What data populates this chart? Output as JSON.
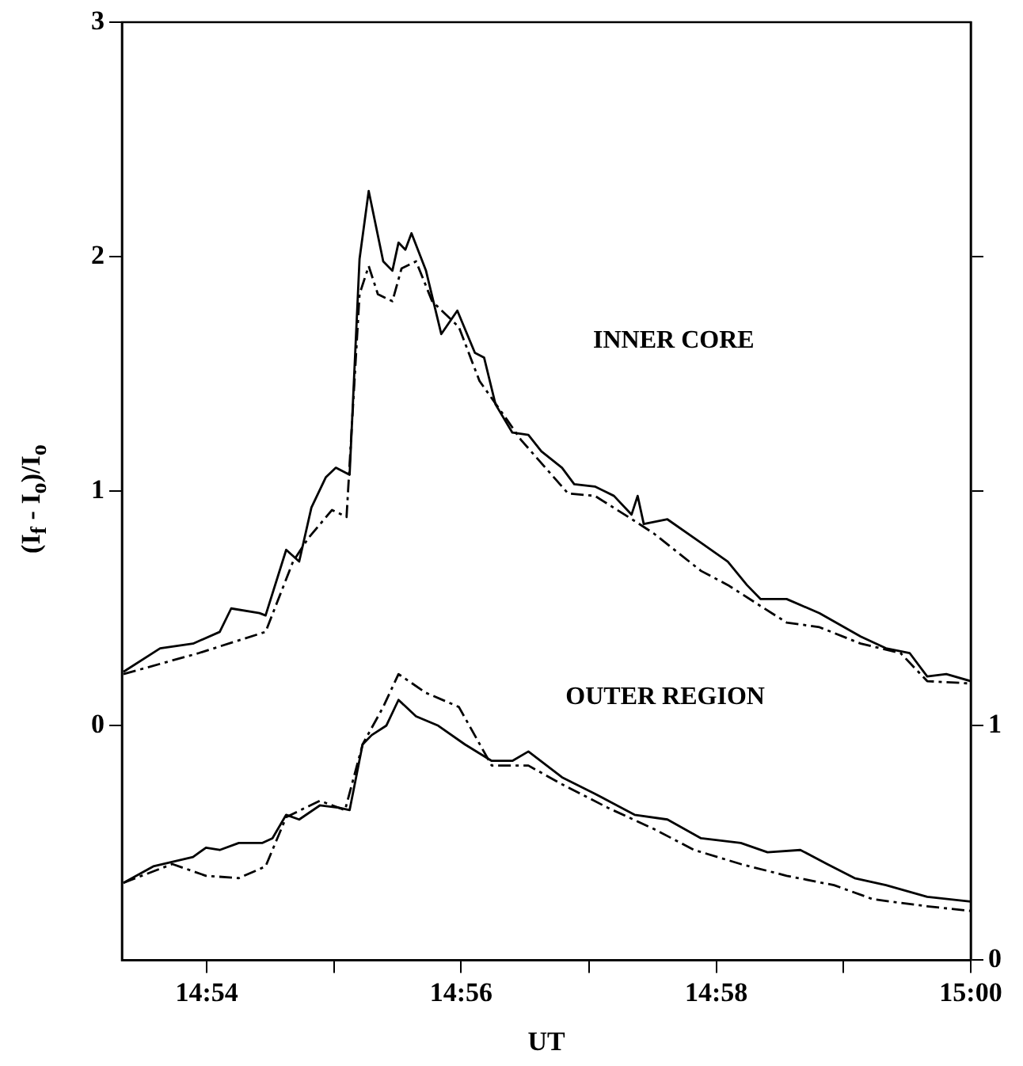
{
  "chart_data": {
    "type": "line",
    "xlabel": "UT",
    "ylabel": "(I$_{f}$ - I$_{o}$)/I$_{o}$",
    "annotations": [
      "INNER CORE",
      "OUTER REGION"
    ],
    "xlim": [
      14.8889,
      15.0
    ],
    "xticks": [
      {
        "value": 14.9,
        "label": "14:54"
      },
      {
        "value": 14.9167,
        "label": null
      },
      {
        "value": 14.9333,
        "label": "14:56"
      },
      {
        "value": 14.95,
        "label": null
      },
      {
        "value": 14.9667,
        "label": "14:58"
      },
      {
        "value": 14.9833,
        "label": null
      },
      {
        "value": 15.0,
        "label": "15:00"
      }
    ],
    "ylim": [
      -1,
      3
    ],
    "yticks": [
      0,
      1,
      2,
      3
    ],
    "y2lim": [
      0,
      4
    ],
    "y2ticks": [
      0,
      1,
      {
        "value": 2,
        "label": null
      },
      {
        "value": 3,
        "label": null
      }
    ],
    "series": [
      {
        "color": "#000000",
        "line_style": "solid",
        "x": [
          14.8891,
          14.8939,
          14.8982,
          14.9017,
          14.9032,
          14.9069,
          14.9077,
          14.9104,
          14.9121,
          14.9137,
          14.9156,
          14.9169,
          14.9187,
          14.92,
          14.9212,
          14.9231,
          14.9243,
          14.9251,
          14.926,
          14.9268,
          14.9287,
          14.9307,
          14.9328,
          14.9351,
          14.9363,
          14.9378,
          14.94,
          14.9421,
          14.9438,
          14.9465,
          14.9481,
          14.9508,
          14.9533,
          14.9556,
          14.9564,
          14.9572,
          14.9603,
          14.9647,
          14.9682,
          14.9707,
          14.9725,
          14.9759,
          14.9802,
          14.9856,
          14.9889,
          14.992,
          14.9943,
          14.9968,
          15.0
        ],
        "values": [
          0.23,
          0.33,
          0.35,
          0.4,
          0.5,
          0.48,
          0.47,
          0.75,
          0.7,
          0.93,
          1.06,
          1.1,
          1.07,
          1.99,
          2.28,
          1.98,
          1.94,
          2.06,
          2.03,
          2.1,
          1.94,
          1.67,
          1.77,
          1.59,
          1.57,
          1.37,
          1.25,
          1.24,
          1.17,
          1.1,
          1.03,
          1.02,
          0.98,
          0.9,
          0.98,
          0.86,
          0.88,
          0.78,
          0.7,
          0.6,
          0.54,
          0.54,
          0.48,
          0.38,
          0.33,
          0.31,
          0.21,
          0.22,
          0.19
        ]
      },
      {
        "color": "#000000",
        "line_style": "dashed",
        "x": [
          14.8891,
          14.899,
          14.9077,
          14.9113,
          14.9133,
          14.9164,
          14.9183,
          14.92,
          14.9212,
          14.9224,
          14.9243,
          14.9255,
          14.9274,
          14.9295,
          14.933,
          14.9357,
          14.9394,
          14.9411,
          14.9473,
          14.9508,
          14.9552,
          14.9585,
          14.9647,
          14.9682,
          14.9725,
          14.9759,
          14.9802,
          14.9856,
          14.9908,
          14.9943,
          15.0
        ],
        "values": [
          0.22,
          0.31,
          0.4,
          0.7,
          0.8,
          0.92,
          0.89,
          1.84,
          1.96,
          1.84,
          1.81,
          1.95,
          1.98,
          1.81,
          1.7,
          1.47,
          1.3,
          1.22,
          0.99,
          0.98,
          0.89,
          0.82,
          0.66,
          0.6,
          0.51,
          0.44,
          0.42,
          0.35,
          0.31,
          0.19,
          0.18
        ]
      },
      {
        "color": "#000000",
        "line_style": "solid",
        "axis": "y2",
        "x": [
          14.8891,
          14.893,
          14.8982,
          14.8999,
          14.9017,
          14.9042,
          14.9073,
          14.9086,
          14.9104,
          14.9121,
          14.9148,
          14.9173,
          14.9187,
          14.9204,
          14.9216,
          14.9235,
          14.9251,
          14.9274,
          14.9303,
          14.9338,
          14.9373,
          14.94,
          14.9421,
          14.9465,
          14.9508,
          14.956,
          14.9603,
          14.9647,
          14.9699,
          14.9734,
          14.9777,
          14.9812,
          14.9848,
          14.9889,
          14.9943,
          15.0
        ],
        "values": [
          0.33,
          0.4,
          0.44,
          0.48,
          0.47,
          0.5,
          0.5,
          0.52,
          0.62,
          0.6,
          0.66,
          0.65,
          0.64,
          0.92,
          0.96,
          1.0,
          1.11,
          1.04,
          1.0,
          0.92,
          0.85,
          0.85,
          0.89,
          0.78,
          0.71,
          0.62,
          0.6,
          0.52,
          0.5,
          0.46,
          0.47,
          0.41,
          0.35,
          0.32,
          0.27,
          0.25
        ]
      },
      {
        "color": "#000000",
        "line_style": "dashed",
        "axis": "y2",
        "x": [
          14.8891,
          14.8955,
          14.8999,
          14.9042,
          14.9077,
          14.9104,
          14.9148,
          14.9181,
          14.9204,
          14.9231,
          14.9251,
          14.9287,
          14.933,
          14.9373,
          14.9394,
          14.9421,
          14.9465,
          14.9525,
          14.9585,
          14.9638,
          14.9699,
          14.9759,
          14.9821,
          14.9872,
          14.9943,
          15.0
        ],
        "values": [
          0.33,
          0.41,
          0.36,
          0.35,
          0.4,
          0.61,
          0.68,
          0.64,
          0.92,
          1.08,
          1.22,
          1.14,
          1.08,
          0.83,
          0.83,
          0.83,
          0.75,
          0.65,
          0.56,
          0.47,
          0.41,
          0.36,
          0.32,
          0.26,
          0.23,
          0.21
        ]
      }
    ]
  }
}
